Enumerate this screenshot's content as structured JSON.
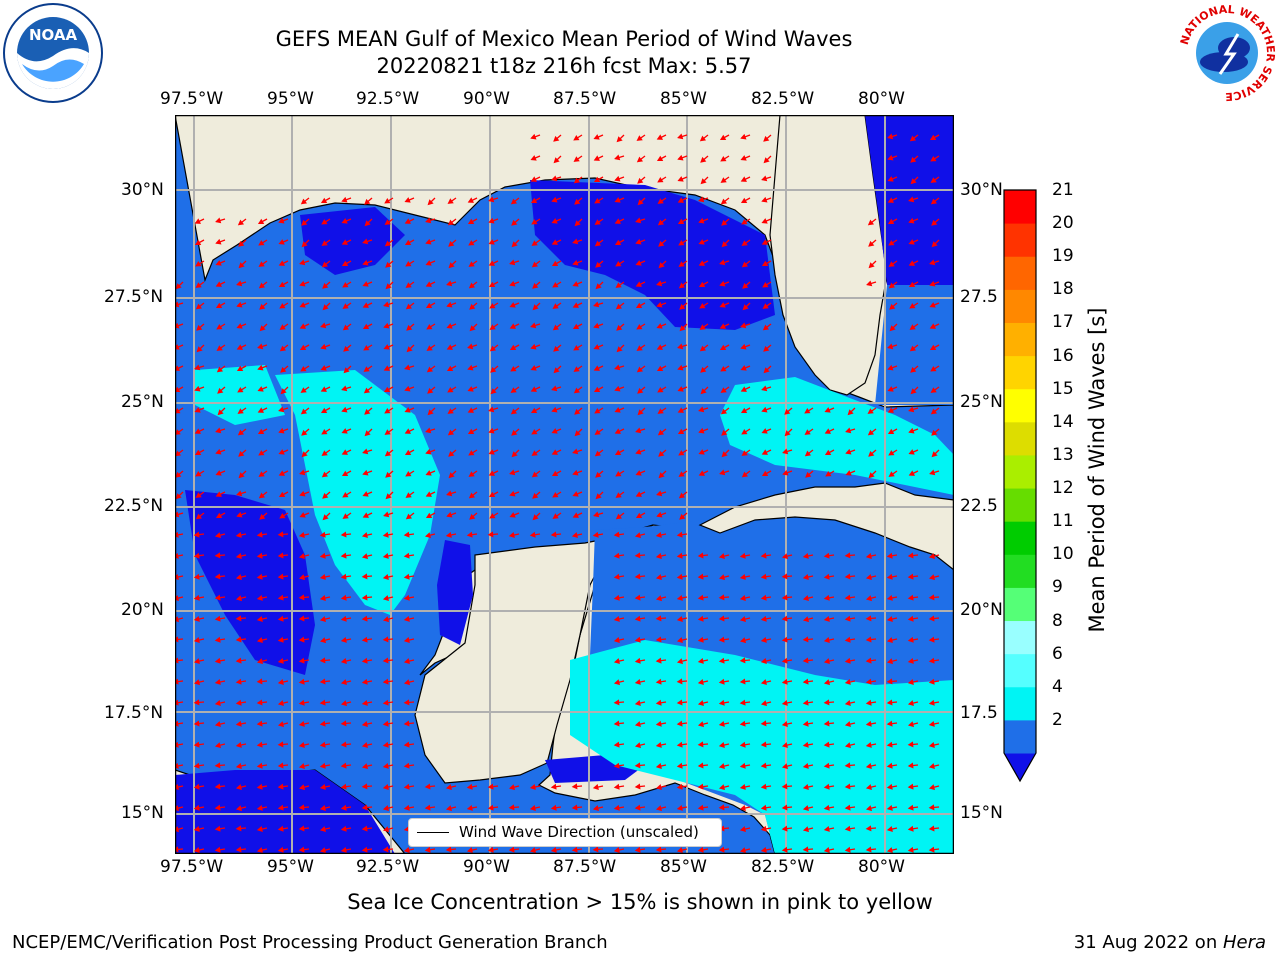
{
  "title": {
    "line1": "GEFS MEAN Gulf of Mexico Mean Period of Wind Waves",
    "line2": "20220821 t18z 216h fcst   Max: 5.57"
  },
  "map": {
    "lon_ticks_top": [
      "97.5°W",
      "95°W",
      "92.5°W",
      "90°W",
      "87.5°W",
      "85°W",
      "82.5°W",
      "80°W"
    ],
    "lon_ticks_bottom": [
      "97.5°W",
      "95°W",
      "92.5°W",
      "90°W",
      "87.5°W",
      "85°W",
      "82.5°W",
      "80°W"
    ],
    "lat_ticks_left": [
      "30°N",
      "27.5°N",
      "25°N",
      "22.5°N",
      "20°N",
      "17.5°N",
      "15°N"
    ],
    "lat_ticks_right": [
      "30°N",
      "27.5",
      "25°N",
      "22.5",
      "20°N",
      "17.5",
      "15°N"
    ],
    "legend": "Wind Wave Direction (unscaled)",
    "colors": {
      "land": "#efecdc",
      "ocean_2_4": "#1f6fe8",
      "ocean_lt2": "#1010e8",
      "ocean_4_6": "#00f4f4",
      "arrow": "#ff0000",
      "grid": "#b0b0b0"
    }
  },
  "colorbar": {
    "label": "Mean Period of Wind Waves [s]",
    "tick_labels": [
      "21",
      "20",
      "19",
      "18",
      "17",
      "16",
      "15",
      "14",
      "13",
      "12",
      "11",
      "10",
      "9",
      "8",
      "6",
      "4",
      "2"
    ],
    "colors": [
      "#1010e8",
      "#1f6fe8",
      "#00f4f4",
      "#55ffff",
      "#99ffff",
      "#55ff77",
      "#22dd22",
      "#00cc00",
      "#66dd00",
      "#aaee00",
      "#dddd00",
      "#ffff00",
      "#ffd400",
      "#ffb000",
      "#ff8800",
      "#ff6600",
      "#ff3300",
      "#ff0000"
    ]
  },
  "notes": {
    "sea_ice": "Sea Ice Concentration > 15% is shown in pink to yellow"
  },
  "footer": {
    "left": "NCEP/EMC/Verification Post Processing Product Generation Branch",
    "date": "31 Aug 2022 on ",
    "machine": "Hera"
  },
  "logos": {
    "left": "NOAA",
    "right_ring": "NATIONAL WEATHER SERVICE"
  }
}
